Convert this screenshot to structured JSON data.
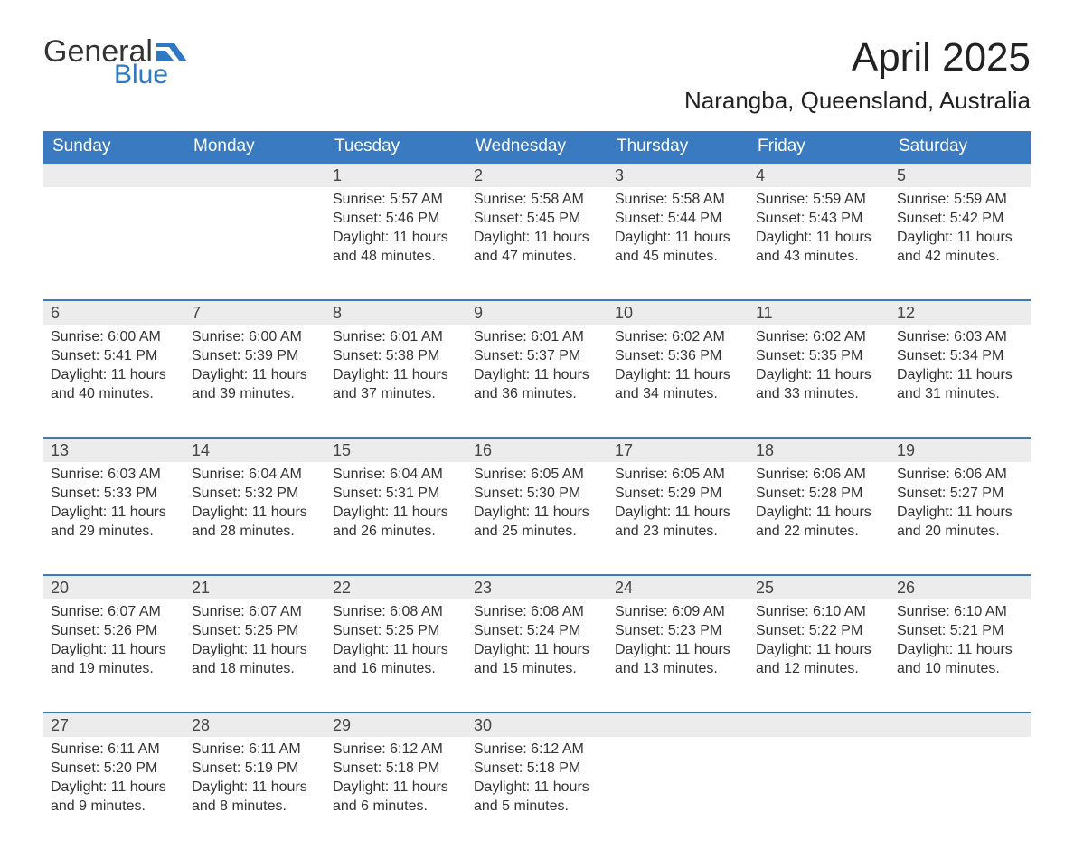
{
  "brand": {
    "general": "General",
    "blue": "Blue",
    "flag_color": "#2f78c3"
  },
  "title": "April 2025",
  "location": "Narangba, Queensland, Australia",
  "colors": {
    "header_bg": "#3a7ac0",
    "header_text": "#ffffff",
    "daynum_bg": "#ececec",
    "daynum_border": "#3a7ac0",
    "body_text": "#333333",
    "page_bg": "#ffffff"
  },
  "day_headers": [
    "Sunday",
    "Monday",
    "Tuesday",
    "Wednesday",
    "Thursday",
    "Friday",
    "Saturday"
  ],
  "weeks": [
    [
      null,
      null,
      {
        "n": "1",
        "sr": "5:57 AM",
        "ss": "5:46 PM",
        "dl": "11 hours and 48 minutes."
      },
      {
        "n": "2",
        "sr": "5:58 AM",
        "ss": "5:45 PM",
        "dl": "11 hours and 47 minutes."
      },
      {
        "n": "3",
        "sr": "5:58 AM",
        "ss": "5:44 PM",
        "dl": "11 hours and 45 minutes."
      },
      {
        "n": "4",
        "sr": "5:59 AM",
        "ss": "5:43 PM",
        "dl": "11 hours and 43 minutes."
      },
      {
        "n": "5",
        "sr": "5:59 AM",
        "ss": "5:42 PM",
        "dl": "11 hours and 42 minutes."
      }
    ],
    [
      {
        "n": "6",
        "sr": "6:00 AM",
        "ss": "5:41 PM",
        "dl": "11 hours and 40 minutes."
      },
      {
        "n": "7",
        "sr": "6:00 AM",
        "ss": "5:39 PM",
        "dl": "11 hours and 39 minutes."
      },
      {
        "n": "8",
        "sr": "6:01 AM",
        "ss": "5:38 PM",
        "dl": "11 hours and 37 minutes."
      },
      {
        "n": "9",
        "sr": "6:01 AM",
        "ss": "5:37 PM",
        "dl": "11 hours and 36 minutes."
      },
      {
        "n": "10",
        "sr": "6:02 AM",
        "ss": "5:36 PM",
        "dl": "11 hours and 34 minutes."
      },
      {
        "n": "11",
        "sr": "6:02 AM",
        "ss": "5:35 PM",
        "dl": "11 hours and 33 minutes."
      },
      {
        "n": "12",
        "sr": "6:03 AM",
        "ss": "5:34 PM",
        "dl": "11 hours and 31 minutes."
      }
    ],
    [
      {
        "n": "13",
        "sr": "6:03 AM",
        "ss": "5:33 PM",
        "dl": "11 hours and 29 minutes."
      },
      {
        "n": "14",
        "sr": "6:04 AM",
        "ss": "5:32 PM",
        "dl": "11 hours and 28 minutes."
      },
      {
        "n": "15",
        "sr": "6:04 AM",
        "ss": "5:31 PM",
        "dl": "11 hours and 26 minutes."
      },
      {
        "n": "16",
        "sr": "6:05 AM",
        "ss": "5:30 PM",
        "dl": "11 hours and 25 minutes."
      },
      {
        "n": "17",
        "sr": "6:05 AM",
        "ss": "5:29 PM",
        "dl": "11 hours and 23 minutes."
      },
      {
        "n": "18",
        "sr": "6:06 AM",
        "ss": "5:28 PM",
        "dl": "11 hours and 22 minutes."
      },
      {
        "n": "19",
        "sr": "6:06 AM",
        "ss": "5:27 PM",
        "dl": "11 hours and 20 minutes."
      }
    ],
    [
      {
        "n": "20",
        "sr": "6:07 AM",
        "ss": "5:26 PM",
        "dl": "11 hours and 19 minutes."
      },
      {
        "n": "21",
        "sr": "6:07 AM",
        "ss": "5:25 PM",
        "dl": "11 hours and 18 minutes."
      },
      {
        "n": "22",
        "sr": "6:08 AM",
        "ss": "5:25 PM",
        "dl": "11 hours and 16 minutes."
      },
      {
        "n": "23",
        "sr": "6:08 AM",
        "ss": "5:24 PM",
        "dl": "11 hours and 15 minutes."
      },
      {
        "n": "24",
        "sr": "6:09 AM",
        "ss": "5:23 PM",
        "dl": "11 hours and 13 minutes."
      },
      {
        "n": "25",
        "sr": "6:10 AM",
        "ss": "5:22 PM",
        "dl": "11 hours and 12 minutes."
      },
      {
        "n": "26",
        "sr": "6:10 AM",
        "ss": "5:21 PM",
        "dl": "11 hours and 10 minutes."
      }
    ],
    [
      {
        "n": "27",
        "sr": "6:11 AM",
        "ss": "5:20 PM",
        "dl": "11 hours and 9 minutes."
      },
      {
        "n": "28",
        "sr": "6:11 AM",
        "ss": "5:19 PM",
        "dl": "11 hours and 8 minutes."
      },
      {
        "n": "29",
        "sr": "6:12 AM",
        "ss": "5:18 PM",
        "dl": "11 hours and 6 minutes."
      },
      {
        "n": "30",
        "sr": "6:12 AM",
        "ss": "5:18 PM",
        "dl": "11 hours and 5 minutes."
      },
      null,
      null,
      null
    ]
  ],
  "labels": {
    "sunrise": "Sunrise: ",
    "sunset": "Sunset: ",
    "daylight": "Daylight: "
  }
}
